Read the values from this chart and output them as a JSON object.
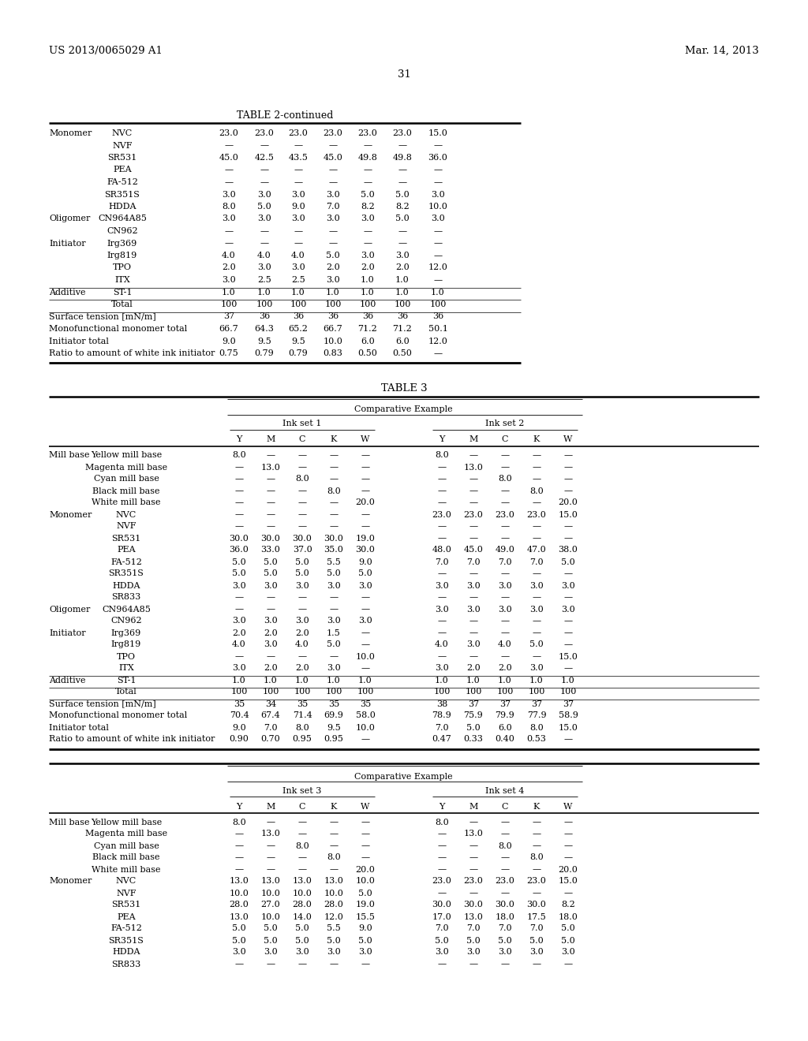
{
  "page_header_left": "US 2013/0065029 A1",
  "page_header_right": "Mar. 14, 2013",
  "page_number": "31",
  "background_color": "#ffffff",
  "text_color": "#000000",
  "table2_title": "TABLE 2-continued",
  "table2_rows": [
    [
      "Monomer",
      "NVC",
      "23.0",
      "23.0",
      "23.0",
      "23.0",
      "23.0",
      "23.0",
      "15.0"
    ],
    [
      "",
      "NVF",
      "—",
      "—",
      "—",
      "—",
      "—",
      "—",
      "—"
    ],
    [
      "",
      "SR531",
      "45.0",
      "42.5",
      "43.5",
      "45.0",
      "49.8",
      "49.8",
      "36.0"
    ],
    [
      "",
      "PEA",
      "—",
      "—",
      "—",
      "—",
      "—",
      "—",
      "—"
    ],
    [
      "",
      "FA-512",
      "—",
      "—",
      "—",
      "—",
      "—",
      "—",
      "—"
    ],
    [
      "",
      "SR351S",
      "3.0",
      "3.0",
      "3.0",
      "3.0",
      "5.0",
      "5.0",
      "3.0"
    ],
    [
      "",
      "HDDA",
      "8.0",
      "5.0",
      "9.0",
      "7.0",
      "8.2",
      "8.2",
      "10.0"
    ],
    [
      "Oligomer",
      "CN964A85",
      "3.0",
      "3.0",
      "3.0",
      "3.0",
      "3.0",
      "5.0",
      "3.0"
    ],
    [
      "",
      "CN962",
      "—",
      "—",
      "—",
      "—",
      "—",
      "—",
      "—"
    ],
    [
      "Initiator",
      "Irg369",
      "—",
      "—",
      "—",
      "—",
      "—",
      "—",
      "—"
    ],
    [
      "",
      "Irg819",
      "4.0",
      "4.0",
      "4.0",
      "5.0",
      "3.0",
      "3.0",
      "—"
    ],
    [
      "",
      "TPO",
      "2.0",
      "3.0",
      "3.0",
      "2.0",
      "2.0",
      "2.0",
      "12.0"
    ],
    [
      "",
      "ITX",
      "3.0",
      "2.5",
      "2.5",
      "3.0",
      "1.0",
      "1.0",
      "—"
    ],
    [
      "Additive",
      "ST-1",
      "1.0",
      "1.0",
      "1.0",
      "1.0",
      "1.0",
      "1.0",
      "1.0"
    ],
    [
      "",
      "Total",
      "100",
      "100",
      "100",
      "100",
      "100",
      "100",
      "100"
    ],
    [
      "Surface tension [mN/m]",
      "",
      "37",
      "36",
      "36",
      "36",
      "36",
      "36",
      "36"
    ],
    [
      "Monofunctional monomer total",
      "",
      "66.7",
      "64.3",
      "65.2",
      "66.7",
      "71.2",
      "71.2",
      "50.1"
    ],
    [
      "Initiator total",
      "",
      "9.0",
      "9.5",
      "9.5",
      "10.0",
      "6.0",
      "6.0",
      "12.0"
    ],
    [
      "Ratio to amount of white ink initiator",
      "",
      "0.75",
      "0.79",
      "0.79",
      "0.83",
      "0.50",
      "0.50",
      "—"
    ]
  ],
  "table3_title": "TABLE 3",
  "table3_comp_ex": "Comparative Example",
  "table3_inkset1": "Ink set 1",
  "table3_inkset2": "Ink set 2",
  "table3_inkset3": "Ink set 3",
  "table3_inkset4": "Ink set 4",
  "table3_ymckw": [
    "Y",
    "M",
    "C",
    "K",
    "W"
  ],
  "table3_rows_set12": [
    [
      "Mill base",
      "Yellow mill base",
      "8.0",
      "—",
      "—",
      "—",
      "—",
      "8.0",
      "—",
      "—",
      "—",
      "—"
    ],
    [
      "",
      "Magenta mill base",
      "—",
      "13.0",
      "—",
      "—",
      "—",
      "—",
      "13.0",
      "—",
      "—",
      "—"
    ],
    [
      "",
      "Cyan mill base",
      "—",
      "—",
      "8.0",
      "—",
      "—",
      "—",
      "—",
      "8.0",
      "—",
      "—"
    ],
    [
      "",
      "Black mill base",
      "—",
      "—",
      "—",
      "8.0",
      "—",
      "—",
      "—",
      "—",
      "8.0",
      "—"
    ],
    [
      "",
      "White mill base",
      "—",
      "—",
      "—",
      "—",
      "20.0",
      "—",
      "—",
      "—",
      "—",
      "20.0"
    ],
    [
      "Monomer",
      "NVC",
      "—",
      "—",
      "—",
      "—",
      "—",
      "23.0",
      "23.0",
      "23.0",
      "23.0",
      "15.0"
    ],
    [
      "",
      "NVF",
      "—",
      "—",
      "—",
      "—",
      "—",
      "—",
      "—",
      "—",
      "—",
      "—"
    ],
    [
      "",
      "SR531",
      "30.0",
      "30.0",
      "30.0",
      "30.0",
      "19.0",
      "—",
      "—",
      "—",
      "—",
      "—"
    ],
    [
      "",
      "PEA",
      "36.0",
      "33.0",
      "37.0",
      "35.0",
      "30.0",
      "48.0",
      "45.0",
      "49.0",
      "47.0",
      "38.0"
    ],
    [
      "",
      "FA-512",
      "5.0",
      "5.0",
      "5.0",
      "5.5",
      "9.0",
      "7.0",
      "7.0",
      "7.0",
      "7.0",
      "5.0"
    ],
    [
      "",
      "SR351S",
      "5.0",
      "5.0",
      "5.0",
      "5.0",
      "5.0",
      "—",
      "—",
      "—",
      "—",
      "—"
    ],
    [
      "",
      "HDDA",
      "3.0",
      "3.0",
      "3.0",
      "3.0",
      "3.0",
      "3.0",
      "3.0",
      "3.0",
      "3.0",
      "3.0"
    ],
    [
      "",
      "SR833",
      "—",
      "—",
      "—",
      "—",
      "—",
      "—",
      "—",
      "—",
      "—",
      "—"
    ],
    [
      "Oligomer",
      "CN964A85",
      "—",
      "—",
      "—",
      "—",
      "—",
      "3.0",
      "3.0",
      "3.0",
      "3.0",
      "3.0"
    ],
    [
      "",
      "CN962",
      "3.0",
      "3.0",
      "3.0",
      "3.0",
      "3.0",
      "—",
      "—",
      "—",
      "—",
      "—"
    ],
    [
      "Initiator",
      "Irg369",
      "2.0",
      "2.0",
      "2.0",
      "1.5",
      "—",
      "—",
      "—",
      "—",
      "—",
      "—"
    ],
    [
      "",
      "Irg819",
      "4.0",
      "3.0",
      "4.0",
      "5.0",
      "—",
      "4.0",
      "3.0",
      "4.0",
      "5.0",
      "—"
    ],
    [
      "",
      "TPO",
      "—",
      "—",
      "—",
      "—",
      "10.0",
      "—",
      "—",
      "—",
      "—",
      "15.0"
    ],
    [
      "",
      "ITX",
      "3.0",
      "2.0",
      "2.0",
      "3.0",
      "—",
      "3.0",
      "2.0",
      "2.0",
      "3.0",
      "—"
    ],
    [
      "Additive",
      "ST-1",
      "1.0",
      "1.0",
      "1.0",
      "1.0",
      "1.0",
      "1.0",
      "1.0",
      "1.0",
      "1.0",
      "1.0"
    ],
    [
      "",
      "Total",
      "100",
      "100",
      "100",
      "100",
      "100",
      "100",
      "100",
      "100",
      "100",
      "100"
    ],
    [
      "Surface tension [mN/m]",
      "",
      "35",
      "34",
      "35",
      "35",
      "35",
      "38",
      "37",
      "37",
      "37",
      "37"
    ],
    [
      "Monofunctional monomer total",
      "",
      "70.4",
      "67.4",
      "71.4",
      "69.9",
      "58.0",
      "78.9",
      "75.9",
      "79.9",
      "77.9",
      "58.9"
    ],
    [
      "Initiator total",
      "",
      "9.0",
      "7.0",
      "8.0",
      "9.5",
      "10.0",
      "7.0",
      "5.0",
      "6.0",
      "8.0",
      "15.0"
    ],
    [
      "Ratio to amount of white ink initiator",
      "",
      "0.90",
      "0.70",
      "0.95",
      "0.95",
      "—",
      "0.47",
      "0.33",
      "0.40",
      "0.53",
      "—"
    ]
  ],
  "table3_rows_set34": [
    [
      "Mill base",
      "Yellow mill base",
      "8.0",
      "—",
      "—",
      "—",
      "—",
      "8.0",
      "—",
      "—",
      "—",
      "—"
    ],
    [
      "",
      "Magenta mill base",
      "—",
      "13.0",
      "—",
      "—",
      "—",
      "—",
      "13.0",
      "—",
      "—",
      "—"
    ],
    [
      "",
      "Cyan mill base",
      "—",
      "—",
      "8.0",
      "—",
      "—",
      "—",
      "—",
      "8.0",
      "—",
      "—"
    ],
    [
      "",
      "Black mill base",
      "—",
      "—",
      "—",
      "8.0",
      "—",
      "—",
      "—",
      "—",
      "8.0",
      "—"
    ],
    [
      "",
      "White mill base",
      "—",
      "—",
      "—",
      "—",
      "20.0",
      "—",
      "—",
      "—",
      "—",
      "20.0"
    ],
    [
      "Monomer",
      "NVC",
      "13.0",
      "13.0",
      "13.0",
      "13.0",
      "10.0",
      "23.0",
      "23.0",
      "23.0",
      "23.0",
      "15.0"
    ],
    [
      "",
      "NVF",
      "10.0",
      "10.0",
      "10.0",
      "10.0",
      "5.0",
      "—",
      "—",
      "—",
      "—",
      "—"
    ],
    [
      "",
      "SR531",
      "28.0",
      "27.0",
      "28.0",
      "28.0",
      "19.0",
      "30.0",
      "30.0",
      "30.0",
      "30.0",
      "8.2"
    ],
    [
      "",
      "PEA",
      "13.0",
      "10.0",
      "14.0",
      "12.0",
      "15.5",
      "17.0",
      "13.0",
      "18.0",
      "17.5",
      "18.0"
    ],
    [
      "",
      "FA-512",
      "5.0",
      "5.0",
      "5.0",
      "5.5",
      "9.0",
      "7.0",
      "7.0",
      "7.0",
      "7.0",
      "5.0"
    ],
    [
      "",
      "SR351S",
      "5.0",
      "5.0",
      "5.0",
      "5.0",
      "5.0",
      "5.0",
      "5.0",
      "5.0",
      "5.0",
      "5.0"
    ],
    [
      "",
      "HDDA",
      "3.0",
      "3.0",
      "3.0",
      "3.0",
      "3.0",
      "3.0",
      "3.0",
      "3.0",
      "3.0",
      "3.0"
    ],
    [
      "",
      "SR833",
      "—",
      "—",
      "—",
      "—",
      "—",
      "—",
      "—",
      "—",
      "—",
      "—"
    ]
  ]
}
